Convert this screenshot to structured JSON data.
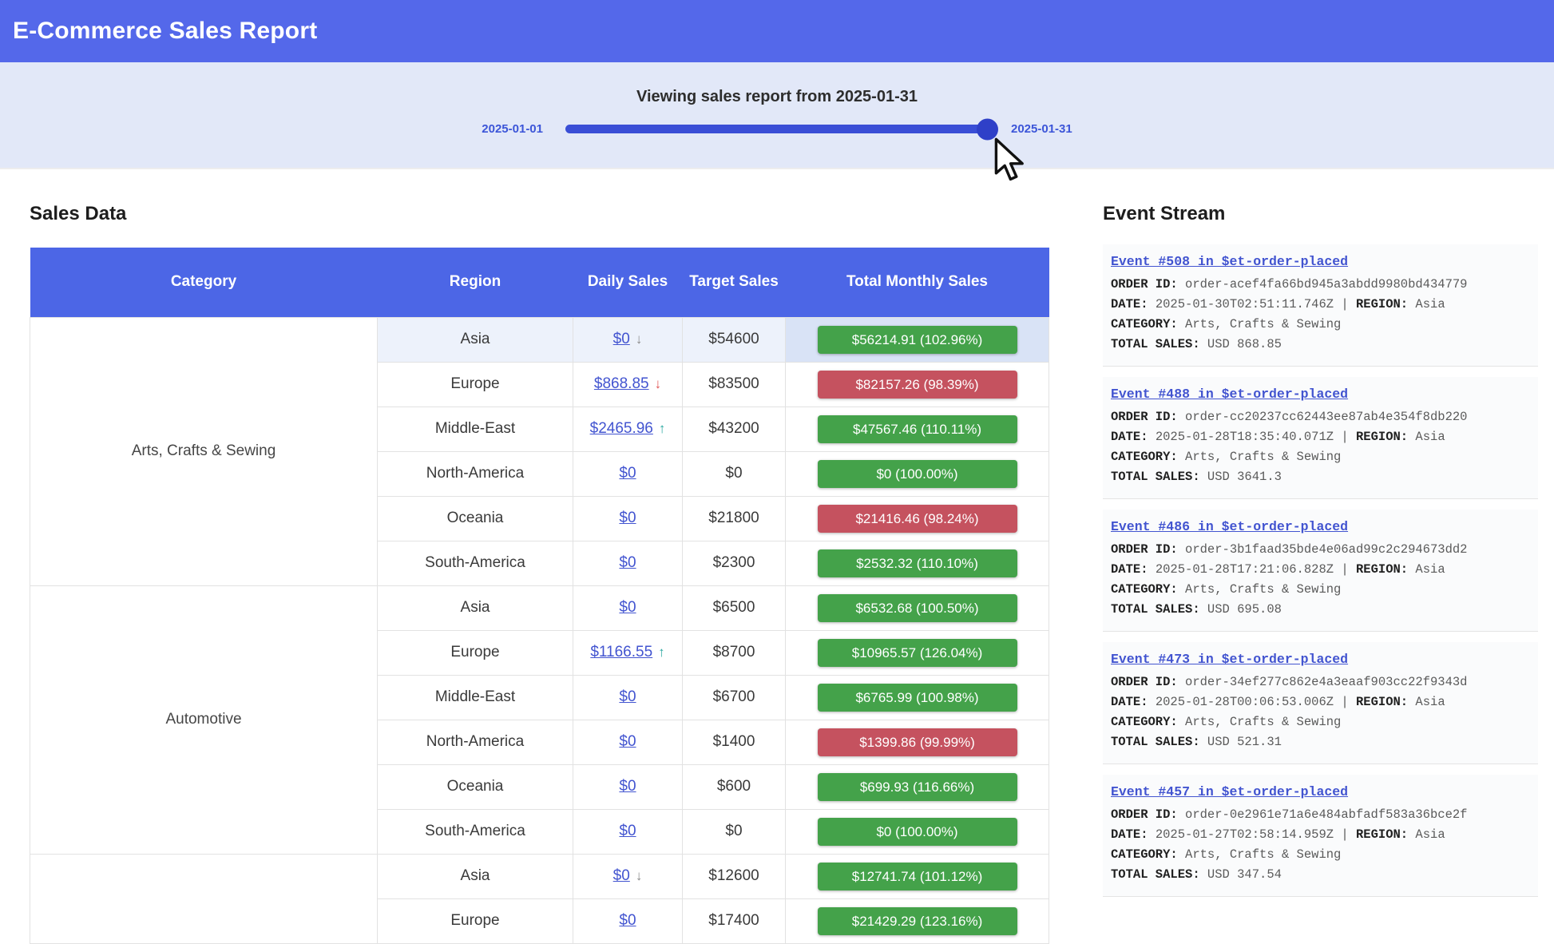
{
  "header": {
    "title": "E-Commerce Sales Report"
  },
  "slider": {
    "caption": "Viewing sales report from 2025-01-31",
    "min_label": "2025-01-01",
    "max_label": "2025-01-31",
    "value": "2025-01-31"
  },
  "sales": {
    "heading": "Sales Data",
    "columns": [
      "Category",
      "Region",
      "Daily Sales",
      "Target Sales",
      "Total Monthly Sales"
    ],
    "groups": [
      {
        "label": "Arts, Crafts & Sewing",
        "span": 6
      },
      {
        "label": "Automotive",
        "span": 6
      },
      {
        "label": "",
        "span": 2
      }
    ],
    "rows": [
      {
        "region": "Asia",
        "daily": "$0",
        "arrow": "down",
        "arrow_color": "gray",
        "target": "$54600",
        "total": "$56214.91 (102.96%)",
        "total_color": "green",
        "highlight": true
      },
      {
        "region": "Europe",
        "daily": "$868.85",
        "arrow": "down",
        "arrow_color": "red",
        "target": "$83500",
        "total": "$82157.26 (98.39%)",
        "total_color": "red"
      },
      {
        "region": "Middle-East",
        "daily": "$2465.96",
        "arrow": "up",
        "arrow_color": "teal",
        "target": "$43200",
        "total": "$47567.46 (110.11%)",
        "total_color": "green"
      },
      {
        "region": "North-America",
        "daily": "$0",
        "arrow": null,
        "arrow_color": null,
        "target": "$0",
        "total": "$0 (100.00%)",
        "total_color": "green"
      },
      {
        "region": "Oceania",
        "daily": "$0",
        "arrow": null,
        "arrow_color": null,
        "target": "$21800",
        "total": "$21416.46 (98.24%)",
        "total_color": "red"
      },
      {
        "region": "South-America",
        "daily": "$0",
        "arrow": null,
        "arrow_color": null,
        "target": "$2300",
        "total": "$2532.32 (110.10%)",
        "total_color": "green"
      },
      {
        "region": "Asia",
        "daily": "$0",
        "arrow": null,
        "arrow_color": null,
        "target": "$6500",
        "total": "$6532.68 (100.50%)",
        "total_color": "green"
      },
      {
        "region": "Europe",
        "daily": "$1166.55",
        "arrow": "up",
        "arrow_color": "teal",
        "target": "$8700",
        "total": "$10965.57 (126.04%)",
        "total_color": "green"
      },
      {
        "region": "Middle-East",
        "daily": "$0",
        "arrow": null,
        "arrow_color": null,
        "target": "$6700",
        "total": "$6765.99 (100.98%)",
        "total_color": "green"
      },
      {
        "region": "North-America",
        "daily": "$0",
        "arrow": null,
        "arrow_color": null,
        "target": "$1400",
        "total": "$1399.86 (99.99%)",
        "total_color": "red"
      },
      {
        "region": "Oceania",
        "daily": "$0",
        "arrow": null,
        "arrow_color": null,
        "target": "$600",
        "total": "$699.93 (116.66%)",
        "total_color": "green"
      },
      {
        "region": "South-America",
        "daily": "$0",
        "arrow": null,
        "arrow_color": null,
        "target": "$0",
        "total": "$0 (100.00%)",
        "total_color": "green"
      },
      {
        "region": "Asia",
        "daily": "$0",
        "arrow": "down",
        "arrow_color": "gray",
        "target": "$12600",
        "total": "$12741.74 (101.12%)",
        "total_color": "green"
      },
      {
        "region": "Europe",
        "daily": "$0",
        "arrow": null,
        "arrow_color": null,
        "target": "$17400",
        "total": "$21429.29 (123.16%)",
        "total_color": "green"
      }
    ]
  },
  "events": {
    "heading": "Event Stream",
    "labels": {
      "order_id": "ORDER ID:",
      "date": "DATE:",
      "separator": "|",
      "region": "REGION:",
      "category": "CATEGORY:",
      "total_sales": "TOTAL SALES:"
    },
    "items": [
      {
        "title": "Event #508 in $et-order-placed",
        "order_id": "order-acef4fa66bd945a3abdd9980bd434779",
        "date": "2025-01-30T02:51:11.746Z",
        "region": "Asia",
        "category": "Arts, Crafts & Sewing",
        "total_sales": "USD 868.85"
      },
      {
        "title": "Event #488 in $et-order-placed",
        "order_id": "order-cc20237cc62443ee87ab4e354f8db220",
        "date": "2025-01-28T18:35:40.071Z",
        "region": "Asia",
        "category": "Arts, Crafts & Sewing",
        "total_sales": "USD 3641.3"
      },
      {
        "title": "Event #486 in $et-order-placed",
        "order_id": "order-3b1faad35bde4e06ad99c2c294673dd2",
        "date": "2025-01-28T17:21:06.828Z",
        "region": "Asia",
        "category": "Arts, Crafts & Sewing",
        "total_sales": "USD 695.08"
      },
      {
        "title": "Event #473 in $et-order-placed",
        "order_id": "order-34ef277c862e4a3eaaf903cc22f9343d",
        "date": "2025-01-28T00:06:53.006Z",
        "region": "Asia",
        "category": "Arts, Crafts & Sewing",
        "total_sales": "USD 521.31"
      },
      {
        "title": "Event #457 in $et-order-placed",
        "order_id": "order-0e2961e71a6e484abfadf583a36bce2f",
        "date": "2025-01-27T02:58:14.959Z",
        "region": "Asia",
        "category": "Arts, Crafts & Sewing",
        "total_sales": "USD 347.54"
      }
    ]
  },
  "colors": {
    "header_blue": "#5468ea",
    "table_header_blue": "#4c66e6",
    "slider_bg": "#e2e8f8",
    "slider_track": "#3a4ed6",
    "badge_green": "#44a24a",
    "badge_red": "#c5525f",
    "link_blue": "#4254d0",
    "highlight_blue": "#d9e3f6"
  },
  "arrows": {
    "down": "↓",
    "up": "↑"
  }
}
